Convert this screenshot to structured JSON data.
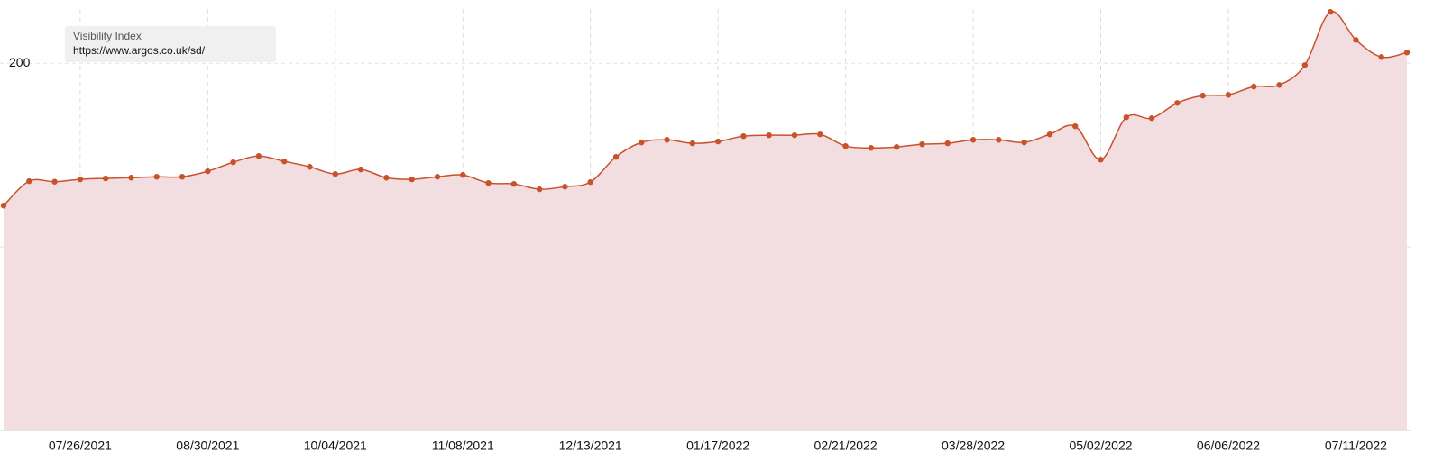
{
  "chart_data": {
    "type": "area",
    "legend_title": "Visibility Index",
    "categories": [
      null,
      null,
      null,
      "07/26/2021",
      null,
      null,
      null,
      null,
      "08/30/2021",
      null,
      null,
      null,
      null,
      "10/04/2021",
      null,
      null,
      null,
      null,
      "11/08/2021",
      null,
      null,
      null,
      null,
      "12/13/2021",
      null,
      null,
      null,
      null,
      "01/17/2022",
      null,
      null,
      null,
      null,
      "02/21/2022",
      null,
      null,
      null,
      null,
      "03/28/2022",
      null,
      null,
      null,
      null,
      "05/02/2022",
      null,
      null,
      null,
      null,
      "06/06/2022",
      null,
      null,
      null,
      null,
      "07/11/2022",
      null,
      null
    ],
    "series": [
      {
        "name": "https://www.argos.co.uk/sd/",
        "color": "#c8522a",
        "fill": "#f2dde1",
        "values": [
          122.5,
          135.8,
          135.5,
          136.8,
          137.3,
          137.7,
          138.2,
          138.2,
          141.2,
          146.1,
          149.5,
          146.6,
          143.6,
          139.7,
          142.2,
          137.7,
          136.8,
          138.2,
          139.2,
          134.8,
          134.3,
          131.4,
          132.8,
          135.3,
          149.0,
          156.9,
          158.3,
          156.4,
          157.4,
          160.3,
          160.8,
          160.8,
          161.3,
          154.9,
          153.9,
          154.4,
          155.9,
          156.4,
          158.3,
          158.3,
          156.9,
          161.3,
          165.7,
          147.5,
          170.6,
          170.1,
          178.4,
          182.4,
          182.8,
          187.3,
          188.2,
          199.0,
          228.0,
          212.7,
          203.4,
          205.9
        ]
      }
    ],
    "ylim": [
      0,
      232
    ],
    "yticks": [
      100,
      200
    ],
    "grid": true
  }
}
